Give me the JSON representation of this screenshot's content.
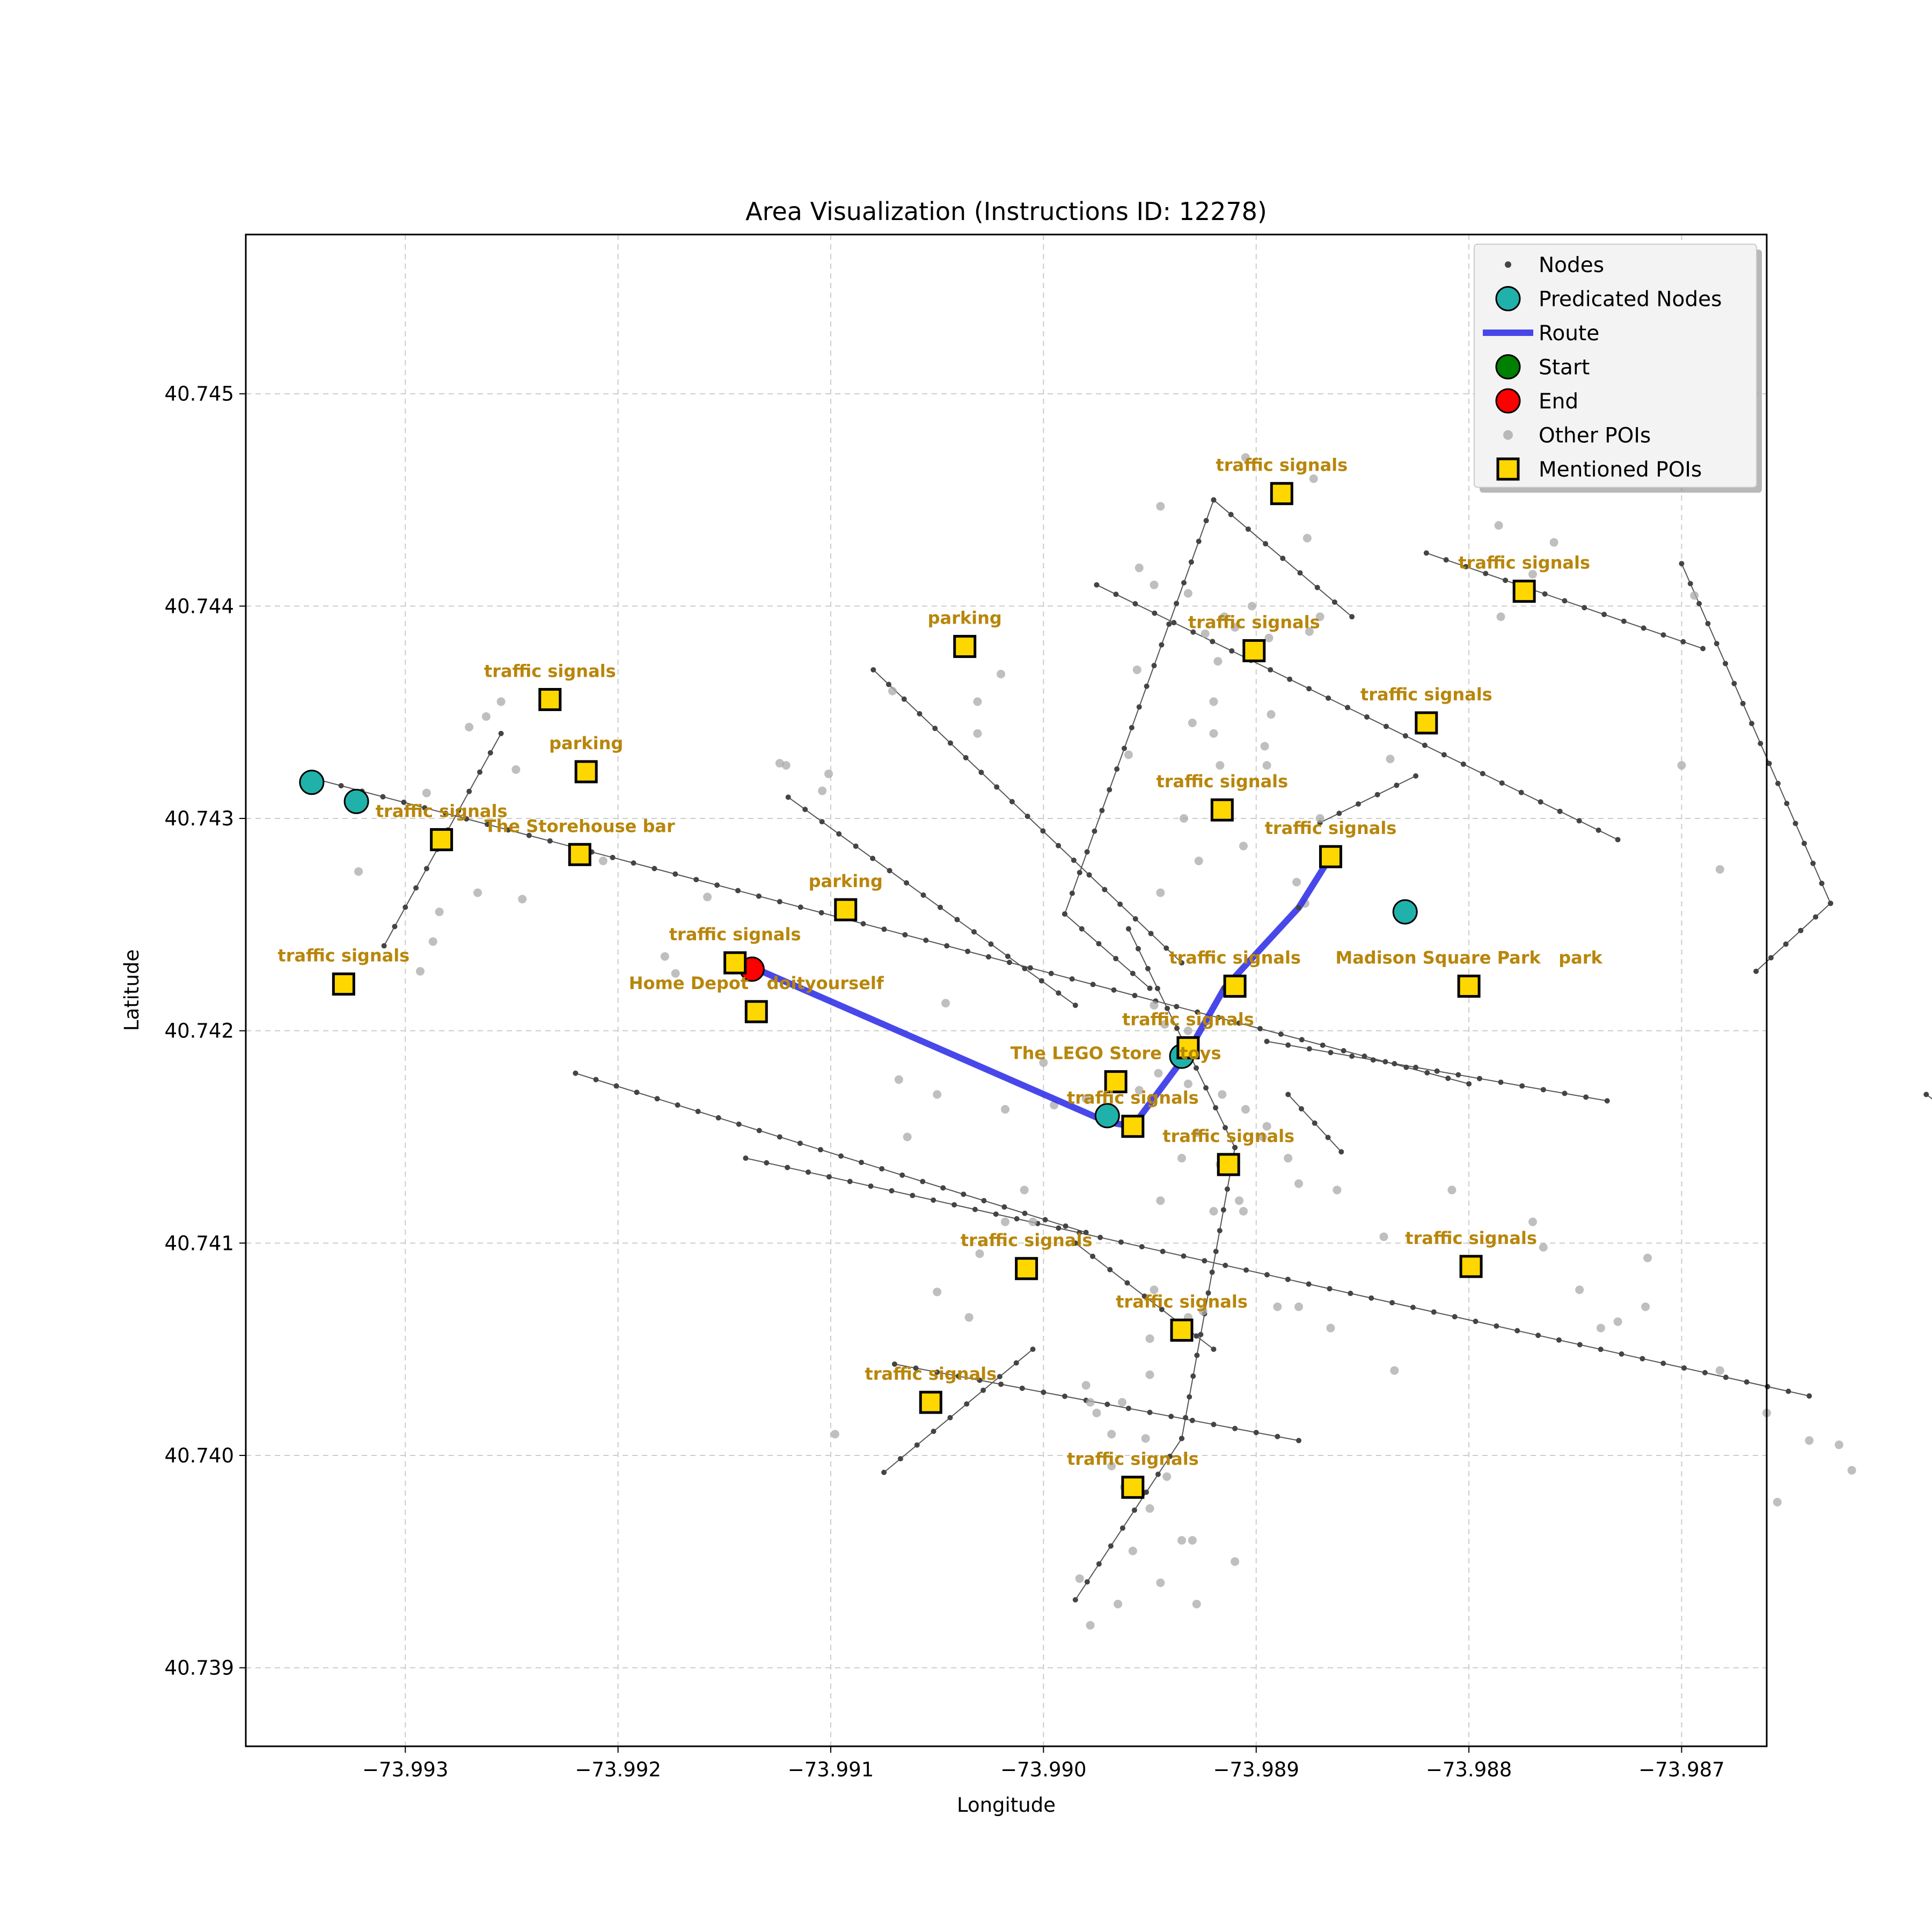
{
  "chart_data": {
    "type": "scatter",
    "title": "Area Visualization (Instructions ID: 12278)",
    "xlabel": "Longitude",
    "ylabel": "Latitude",
    "xlim": [
      -73.99375,
      -73.9866
    ],
    "ylim": [
      40.73863,
      40.74575
    ],
    "xticks": [
      -73.993,
      -73.992,
      -73.991,
      -73.99,
      -73.989,
      -73.988,
      -73.987
    ],
    "xtick_labels": [
      "−73.993",
      "−73.992",
      "−73.991",
      "−73.990",
      "−73.989",
      "−73.988",
      "−73.987"
    ],
    "yticks": [
      40.739,
      40.74,
      40.741,
      40.742,
      40.743,
      40.744,
      40.745
    ],
    "ytick_labels": [
      "40.739",
      "40.740",
      "40.741",
      "40.742",
      "40.743",
      "40.744",
      "40.745"
    ],
    "grid": true,
    "legend_position": "top-right",
    "legend": [
      {
        "key": "nodes",
        "label": "Nodes"
      },
      {
        "key": "predicated",
        "label": "Predicated Nodes"
      },
      {
        "key": "route",
        "label": "Route"
      },
      {
        "key": "start",
        "label": "Start"
      },
      {
        "key": "end",
        "label": "End"
      },
      {
        "key": "other_pois",
        "label": "Other POIs"
      },
      {
        "key": "mentioned",
        "label": "Mentioned POIs"
      }
    ],
    "colors": {
      "nodes": "#444444",
      "edges": "#555555",
      "predicated": "#20b2aa",
      "route": "#2828e6",
      "start": "#008000",
      "end": "#ff0000",
      "other_pois": "#a9a9a9",
      "mentioned": "#ffd700",
      "poi_label": "#b8860b",
      "grid": "#cccccc"
    },
    "streets": [
      [
        [
          -73.9934,
          40.74318
        ],
        [
          -73.988,
          40.74175
        ]
      ],
      [
        [
          -73.9931,
          40.7424
        ],
        [
          -73.99255,
          40.7434
        ]
      ],
      [
        [
          -73.9908,
          40.7437
        ],
        [
          -73.98935,
          40.74232
        ]
      ],
      [
        [
          -73.9912,
          40.7431
        ],
        [
          -73.98985,
          40.74212
        ]
      ],
      [
        [
          -73.9914,
          40.7414
        ],
        [
          -73.9864,
          40.74028
        ]
      ],
      [
        [
          -73.9907,
          40.74043
        ],
        [
          -73.9888,
          40.74007
        ]
      ],
      [
        [
          -73.98975,
          40.7441
        ],
        [
          -73.9873,
          40.7429
        ]
      ],
      [
        [
          -73.9882,
          40.74425
        ],
        [
          -73.9869,
          40.7438
        ]
      ],
      [
        [
          -73.9922,
          40.7418
        ],
        [
          -73.9898,
          40.74105
        ]
      ],
      [
        [
          -73.98585,
          40.7417
        ],
        [
          -73.98445,
          40.74065
        ]
      ],
      [
        [
          -73.99075,
          40.73992
        ],
        [
          -73.99005,
          40.7405
        ]
      ],
      [
        [
          -73.9892,
          40.7445
        ],
        [
          -73.9899,
          40.74255
        ]
      ],
      [
        [
          -73.9892,
          40.7445
        ],
        [
          -73.98855,
          40.74395
        ]
      ],
      [
        [
          -73.9899,
          40.74255
        ],
        [
          -73.9895,
          40.7422
        ]
      ],
      [
        [
          -73.9896,
          40.74248
        ],
        [
          -73.9891,
          40.74145
        ]
      ],
      [
        [
          -73.9891,
          40.74145
        ],
        [
          -73.98935,
          40.74008
        ]
      ],
      [
        [
          -73.98935,
          40.74008
        ],
        [
          -73.98985,
          40.73932
        ]
      ],
      [
        [
          -73.987,
          40.7442
        ],
        [
          -73.9863,
          40.7426
        ]
      ],
      [
        [
          -73.9863,
          40.7426
        ],
        [
          -73.98665,
          40.74228
        ]
      ],
      [
        [
          -73.98825,
          40.7432
        ],
        [
          -73.9887,
          40.74298
        ]
      ],
      [
        [
          -73.98895,
          40.74195
        ],
        [
          -73.98735,
          40.74167
        ]
      ],
      [
        [
          -73.98885,
          40.7417
        ],
        [
          -73.9886,
          40.74143
        ]
      ],
      [
        [
          -73.98985,
          40.741
        ],
        [
          -73.9892,
          40.7405
        ]
      ]
    ],
    "route": [
      [
        -73.99137,
        40.7423
      ],
      [
        -73.9897,
        40.74157
      ],
      [
        -73.98958,
        40.74155
      ],
      [
        -73.98932,
        40.7419
      ],
      [
        -73.98915,
        40.7422
      ],
      [
        -73.9888,
        40.74258
      ],
      [
        -73.98865,
        40.74282
      ]
    ],
    "predicated_nodes": [
      [
        -73.99344,
        40.74317
      ],
      [
        -73.99323,
        40.74308
      ],
      [
        -73.9883,
        40.74256
      ],
      [
        -73.98935,
        40.74188
      ],
      [
        -73.9897,
        40.7416
      ]
    ],
    "end": [
      -73.99137,
      40.74229
    ],
    "mentioned_pois": [
      {
        "x": -73.99232,
        "y": 40.74356,
        "label": "traffic signals"
      },
      {
        "x": -73.99215,
        "y": 40.74322,
        "label": "parking"
      },
      {
        "x": -73.99283,
        "y": 40.7429,
        "label": "traffic signals"
      },
      {
        "x": -73.99218,
        "y": 40.74283,
        "label": "The Storehouse bar"
      },
      {
        "x": -73.99329,
        "y": 40.74222,
        "label": "traffic signals"
      },
      {
        "x": -73.99145,
        "y": 40.74232,
        "label": "traffic signals"
      },
      {
        "x": -73.99135,
        "y": 40.74209,
        "label": "Home Depot   doityourself"
      },
      {
        "x": -73.99093,
        "y": 40.74257,
        "label": "parking"
      },
      {
        "x": -73.99037,
        "y": 40.74381,
        "label": "parking"
      },
      {
        "x": -73.98888,
        "y": 40.74453,
        "label": "traffic signals"
      },
      {
        "x": -73.98901,
        "y": 40.74379,
        "label": "traffic signals"
      },
      {
        "x": -73.98774,
        "y": 40.74407,
        "label": "traffic signals"
      },
      {
        "x": -73.9882,
        "y": 40.74345,
        "label": "traffic signals"
      },
      {
        "x": -73.98916,
        "y": 40.74304,
        "label": "traffic signals"
      },
      {
        "x": -73.98865,
        "y": 40.74282,
        "label": "traffic signals"
      },
      {
        "x": -73.9891,
        "y": 40.74221,
        "label": "traffic signals"
      },
      {
        "x": -73.988,
        "y": 40.74221,
        "label": "Madison Square Park   park"
      },
      {
        "x": -73.98932,
        "y": 40.74192,
        "label": "traffic signals"
      },
      {
        "x": -73.98966,
        "y": 40.74176,
        "label": "The LEGO Store   toys"
      },
      {
        "x": -73.98958,
        "y": 40.74155,
        "label": "traffic signals"
      },
      {
        "x": -73.98913,
        "y": 40.74137,
        "label": "traffic signals"
      },
      {
        "x": -73.99008,
        "y": 40.74088,
        "label": "traffic signals"
      },
      {
        "x": -73.98799,
        "y": 40.74089,
        "label": "traffic signals"
      },
      {
        "x": -73.98935,
        "y": 40.74059,
        "label": "traffic signals"
      },
      {
        "x": -73.99053,
        "y": 40.74025,
        "label": "traffic signals"
      },
      {
        "x": -73.98958,
        "y": 40.73985,
        "label": "traffic signals"
      }
    ],
    "other_pois": [
      [
        -73.99255,
        40.74355
      ],
      [
        -73.99262,
        40.74348
      ],
      [
        -73.9927,
        40.74343
      ],
      [
        -73.99248,
        40.74323
      ],
      [
        -73.9929,
        40.74312
      ],
      [
        -73.99322,
        40.74275
      ],
      [
        -73.99245,
        40.74262
      ],
      [
        -73.99266,
        40.74265
      ],
      [
        -73.99284,
        40.74256
      ],
      [
        -73.99287,
        40.74242
      ],
      [
        -73.99293,
        40.74228
      ],
      [
        -73.99207,
        40.7428
      ],
      [
        -73.99173,
        40.74227
      ],
      [
        -73.99178,
        40.74235
      ],
      [
        -73.99158,
        40.74263
      ],
      [
        -73.99124,
        40.74326
      ],
      [
        -73.99121,
        40.74325
      ],
      [
        -73.99104,
        40.74313
      ],
      [
        -73.99101,
        40.74321
      ],
      [
        -73.99071,
        40.7436
      ],
      [
        -73.99046,
        40.74213
      ],
      [
        -73.99068,
        40.74177
      ],
      [
        -73.9905,
        40.7417
      ],
      [
        -73.99018,
        40.74163
      ],
      [
        -73.99031,
        40.7434
      ],
      [
        -73.99031,
        40.74355
      ],
      [
        -73.9902,
        40.74368
      ],
      [
        -73.98905,
        40.7447
      ],
      [
        -73.98945,
        40.74447
      ],
      [
        -73.98873,
        40.7446
      ],
      [
        -73.98876,
        40.74432
      ],
      [
        -73.98955,
        40.74418
      ],
      [
        -73.98948,
        40.7441
      ],
      [
        -73.98932,
        40.74406
      ],
      [
        -73.98915,
        40.74395
      ],
      [
        -73.98902,
        40.744
      ],
      [
        -73.9887,
        40.74395
      ],
      [
        -73.98875,
        40.74388
      ],
      [
        -73.98924,
        40.74387
      ],
      [
        -73.98956,
        40.7437
      ],
      [
        -73.9892,
        40.74355
      ],
      [
        -73.98894,
        40.74385
      ],
      [
        -73.9896,
        40.7433
      ],
      [
        -73.9893,
        40.74345
      ],
      [
        -73.9892,
        40.7434
      ],
      [
        -73.98918,
        40.74374
      ],
      [
        -73.9891,
        40.7439
      ],
      [
        -73.98893,
        40.74349
      ],
      [
        -73.98917,
        40.74325
      ],
      [
        -73.98896,
        40.74334
      ],
      [
        -73.98895,
        40.74325
      ],
      [
        -73.98934,
        40.743
      ],
      [
        -73.98906,
        40.74287
      ],
      [
        -73.98881,
        40.7427
      ],
      [
        -73.9887,
        40.743
      ],
      [
        -73.98837,
        40.74328
      ],
      [
        -73.98786,
        40.74438
      ],
      [
        -73.9876,
        40.7443
      ],
      [
        -73.9877,
        40.74415
      ],
      [
        -73.98785,
        40.74395
      ],
      [
        -73.98694,
        40.74405
      ],
      [
        -73.987,
        40.74325
      ],
      [
        -73.98682,
        40.74276
      ],
      [
        -73.98927,
        40.7428
      ],
      [
        -73.98945,
        40.74265
      ],
      [
        -73.98877,
        40.7426
      ],
      [
        -73.98948,
        40.74212
      ],
      [
        -73.98932,
        40.742
      ],
      [
        -73.98946,
        40.7418
      ],
      [
        -73.98932,
        40.74175
      ],
      [
        -73.98916,
        40.7417
      ],
      [
        -73.98905,
        40.74163
      ],
      [
        -73.98897,
        40.7415
      ],
      [
        -73.98885,
        40.7414
      ],
      [
        -73.98943,
        40.74203
      ],
      [
        -73.98928,
        40.74152
      ],
      [
        -73.98935,
        40.7414
      ],
      [
        -73.9898,
        40.74168
      ],
      [
        -73.98955,
        40.74172
      ],
      [
        -73.99,
        40.74185
      ],
      [
        -73.98995,
        40.74165
      ],
      [
        -73.98895,
        40.74155
      ],
      [
        -73.9888,
        40.74128
      ],
      [
        -73.98862,
        40.74125
      ],
      [
        -73.9884,
        40.74103
      ],
      [
        -73.98917,
        40.74137
      ],
      [
        -73.98908,
        40.7412
      ],
      [
        -73.98906,
        40.74115
      ],
      [
        -73.9892,
        40.74115
      ],
      [
        -73.98945,
        40.7412
      ],
      [
        -73.99009,
        40.74125
      ],
      [
        -73.99018,
        40.7411
      ],
      [
        -73.9903,
        40.74095
      ],
      [
        -73.99064,
        40.7415
      ],
      [
        -73.99005,
        40.7411
      ],
      [
        -73.98948,
        40.74078
      ],
      [
        -73.98932,
        40.74065
      ],
      [
        -73.9895,
        40.74055
      ],
      [
        -73.9898,
        40.74033
      ],
      [
        -73.98963,
        40.74025
      ],
      [
        -73.98952,
        40.74008
      ],
      [
        -73.9895,
        40.74038
      ],
      [
        -73.98925,
        40.74068
      ],
      [
        -73.9889,
        40.7407
      ],
      [
        -73.9888,
        40.7407
      ],
      [
        -73.98865,
        40.7406
      ],
      [
        -73.98835,
        40.7404
      ],
      [
        -73.98808,
        40.74125
      ],
      [
        -73.9877,
        40.7411
      ],
      [
        -73.98765,
        40.74098
      ],
      [
        -73.98748,
        40.74078
      ],
      [
        -73.9873,
        40.74063
      ],
      [
        -73.98716,
        40.74093
      ],
      [
        -73.98717,
        40.7407
      ],
      [
        -73.98738,
        40.7406
      ],
      [
        -73.98682,
        40.7404
      ],
      [
        -73.9866,
        40.7402
      ],
      [
        -73.9864,
        40.74007
      ],
      [
        -73.98626,
        40.74005
      ],
      [
        -73.9862,
        40.73993
      ],
      [
        -73.98655,
        40.73978
      ],
      [
        -73.9905,
        40.74077
      ],
      [
        -73.99098,
        40.7401
      ],
      [
        -73.99035,
        40.74065
      ],
      [
        -73.9905,
        40.74025
      ],
      [
        -73.98978,
        40.74025
      ],
      [
        -73.98975,
        40.7402
      ],
      [
        -73.98968,
        40.7401
      ],
      [
        -73.98968,
        40.73995
      ],
      [
        -73.98962,
        40.73985
      ],
      [
        -73.9895,
        40.73975
      ],
      [
        -73.98942,
        40.7399
      ],
      [
        -73.98935,
        40.7396
      ],
      [
        -73.9893,
        40.7396
      ],
      [
        -73.98945,
        40.7394
      ],
      [
        -73.98958,
        40.73955
      ],
      [
        -73.98983,
        40.73942
      ],
      [
        -73.98978,
        40.7392
      ],
      [
        -73.98965,
        40.7393
      ],
      [
        -73.98928,
        40.7393
      ],
      [
        -73.9891,
        40.7395
      ]
    ]
  }
}
